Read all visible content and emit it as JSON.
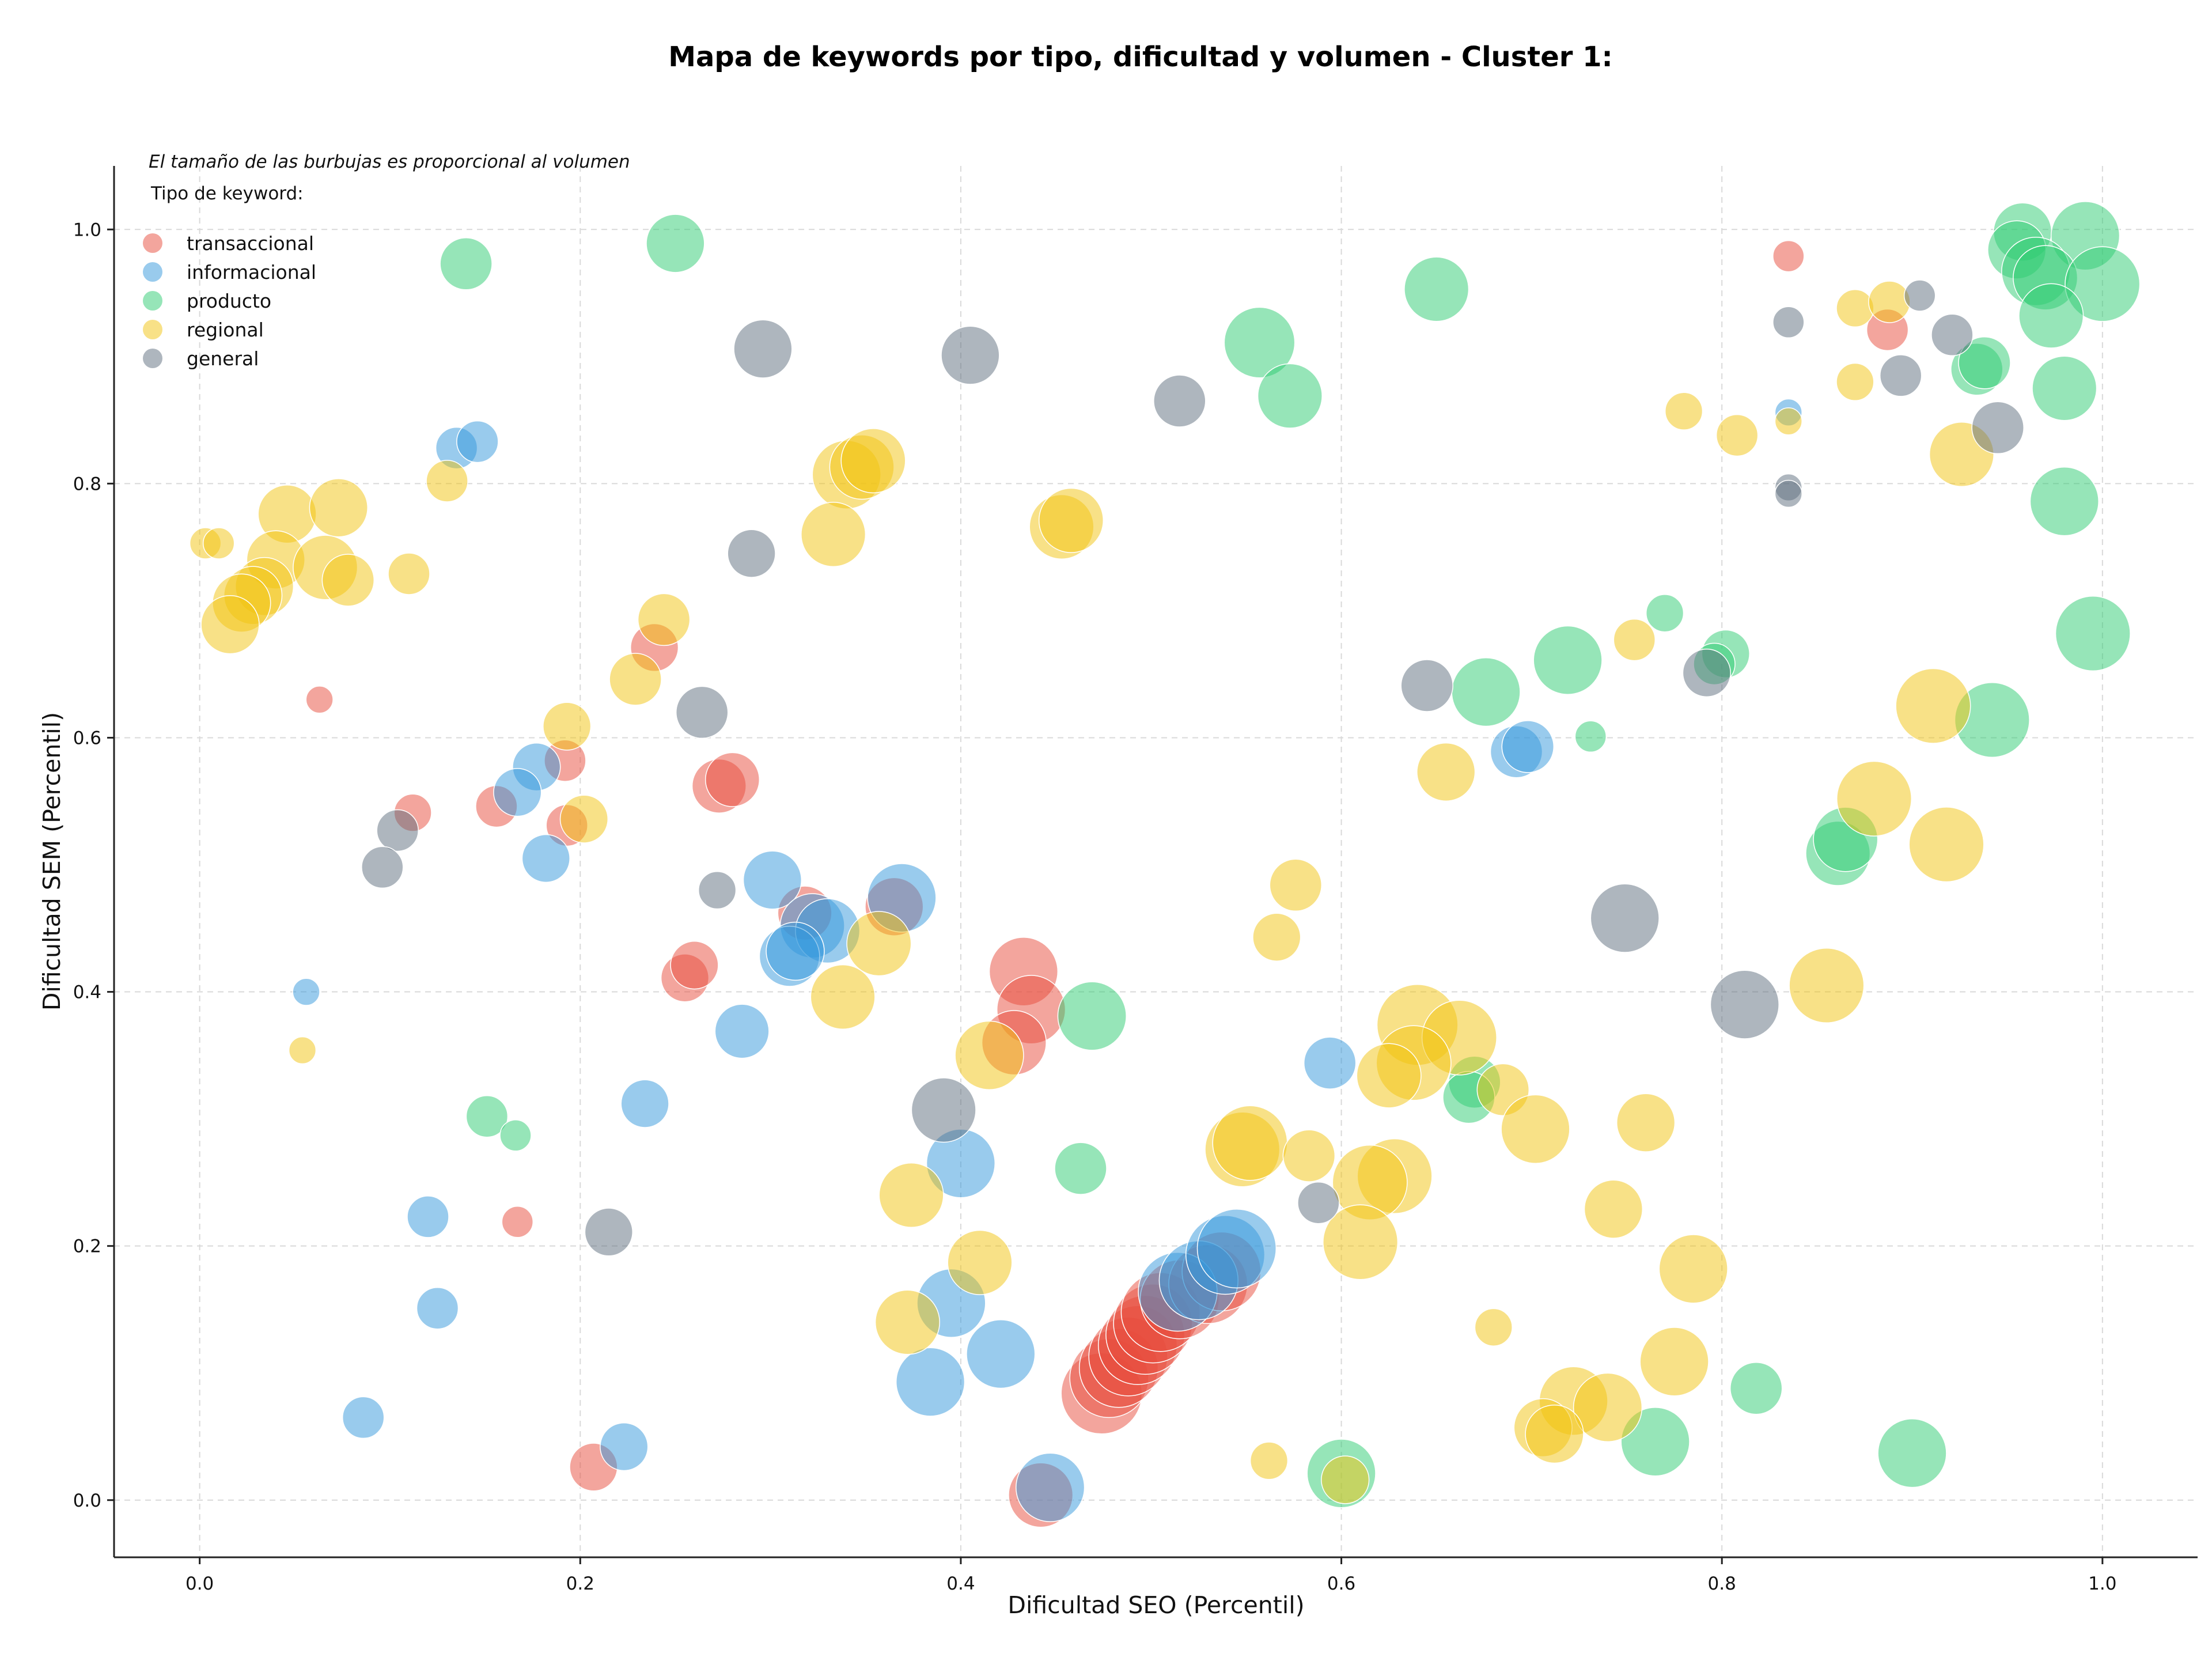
{
  "chart_data": {
    "type": "scatter",
    "title": "Mapa de keywords por tipo, dificultad y volumen - Cluster 1:",
    "xlabel": "Dificultad SEO (Percentil)",
    "ylabel": "Dificultad SEM (Percentil)",
    "xlim": [
      -0.045,
      1.05
    ],
    "ylim": [
      -0.045,
      1.05
    ],
    "xticks": [
      0.0,
      0.2,
      0.4,
      0.6,
      0.8,
      1.0
    ],
    "yticks": [
      0.0,
      0.2,
      0.4,
      0.6,
      0.8,
      1.0
    ],
    "xtick_labels": [
      "0.0",
      "0.2",
      "0.4",
      "0.6",
      "0.8",
      "1.0"
    ],
    "ytick_labels": [
      "0.0",
      "0.2",
      "0.4",
      "0.6",
      "0.8",
      "1.0"
    ],
    "grid": true,
    "legend_placement": "top-left",
    "note": "El tamaño de las burbujas es proporcional al volumen",
    "legend_title": "Tipo de keyword:",
    "series": [
      {
        "name": "transaccional",
        "color": "#e74c3c",
        "points": [
          {
            "x": 0.835,
            "y": 0.979,
            "size": 1.5
          },
          {
            "x": 0.887,
            "y": 0.921,
            "size": 2.0
          },
          {
            "x": 0.063,
            "y": 0.63,
            "size": 1.3
          },
          {
            "x": 0.239,
            "y": 0.671,
            "size": 2.3
          },
          {
            "x": 0.112,
            "y": 0.541,
            "size": 1.8
          },
          {
            "x": 0.156,
            "y": 0.546,
            "size": 2.0
          },
          {
            "x": 0.192,
            "y": 0.582,
            "size": 2.0
          },
          {
            "x": 0.193,
            "y": 0.531,
            "size": 2.0
          },
          {
            "x": 0.273,
            "y": 0.562,
            "size": 2.6
          },
          {
            "x": 0.28,
            "y": 0.567,
            "size": 2.6
          },
          {
            "x": 0.318,
            "y": 0.462,
            "size": 2.6
          },
          {
            "x": 0.365,
            "y": 0.467,
            "size": 2.8
          },
          {
            "x": 0.255,
            "y": 0.411,
            "size": 2.3
          },
          {
            "x": 0.26,
            "y": 0.421,
            "size": 2.3
          },
          {
            "x": 0.433,
            "y": 0.416,
            "size": 3.3
          },
          {
            "x": 0.437,
            "y": 0.386,
            "size": 3.3
          },
          {
            "x": 0.428,
            "y": 0.36,
            "size": 3.1
          },
          {
            "x": 0.167,
            "y": 0.219,
            "size": 1.5
          },
          {
            "x": 0.207,
            "y": 0.026,
            "size": 2.3
          },
          {
            "x": 0.442,
            "y": 0.004,
            "size": 3.1
          },
          {
            "x": 0.474,
            "y": 0.084,
            "size": 3.9
          },
          {
            "x": 0.478,
            "y": 0.096,
            "size": 3.8
          },
          {
            "x": 0.483,
            "y": 0.104,
            "size": 3.8
          },
          {
            "x": 0.488,
            "y": 0.113,
            "size": 3.8
          },
          {
            "x": 0.493,
            "y": 0.122,
            "size": 3.8
          },
          {
            "x": 0.497,
            "y": 0.13,
            "size": 3.8
          },
          {
            "x": 0.501,
            "y": 0.139,
            "size": 3.8
          },
          {
            "x": 0.505,
            "y": 0.148,
            "size": 3.8
          },
          {
            "x": 0.515,
            "y": 0.158,
            "size": 3.8
          },
          {
            "x": 0.53,
            "y": 0.17,
            "size": 3.8
          },
          {
            "x": 0.537,
            "y": 0.18,
            "size": 3.8
          }
        ]
      },
      {
        "name": "informacional",
        "color": "#3498db",
        "points": [
          {
            "x": 0.835,
            "y": 0.856,
            "size": 1.3
          },
          {
            "x": 0.135,
            "y": 0.828,
            "size": 2.0
          },
          {
            "x": 0.146,
            "y": 0.833,
            "size": 2.0
          },
          {
            "x": 0.177,
            "y": 0.577,
            "size": 2.3
          },
          {
            "x": 0.167,
            "y": 0.557,
            "size": 2.3
          },
          {
            "x": 0.182,
            "y": 0.505,
            "size": 2.3
          },
          {
            "x": 0.056,
            "y": 0.4,
            "size": 1.3
          },
          {
            "x": 0.301,
            "y": 0.488,
            "size": 2.8
          },
          {
            "x": 0.322,
            "y": 0.452,
            "size": 3.1
          },
          {
            "x": 0.33,
            "y": 0.448,
            "size": 3.1
          },
          {
            "x": 0.31,
            "y": 0.428,
            "size": 2.9
          },
          {
            "x": 0.313,
            "y": 0.432,
            "size": 2.8
          },
          {
            "x": 0.369,
            "y": 0.474,
            "size": 3.3
          },
          {
            "x": 0.285,
            "y": 0.369,
            "size": 2.6
          },
          {
            "x": 0.234,
            "y": 0.312,
            "size": 2.3
          },
          {
            "x": 0.4,
            "y": 0.265,
            "size": 3.3
          },
          {
            "x": 0.12,
            "y": 0.223,
            "size": 2.0
          },
          {
            "x": 0.125,
            "y": 0.151,
            "size": 2.0
          },
          {
            "x": 0.086,
            "y": 0.065,
            "size": 2.0
          },
          {
            "x": 0.223,
            "y": 0.042,
            "size": 2.3
          },
          {
            "x": 0.395,
            "y": 0.155,
            "size": 3.3
          },
          {
            "x": 0.421,
            "y": 0.115,
            "size": 3.3
          },
          {
            "x": 0.384,
            "y": 0.093,
            "size": 3.3
          },
          {
            "x": 0.447,
            "y": 0.01,
            "size": 3.3
          },
          {
            "x": 0.594,
            "y": 0.344,
            "size": 2.5
          },
          {
            "x": 0.692,
            "y": 0.589,
            "size": 2.5
          },
          {
            "x": 0.698,
            "y": 0.593,
            "size": 2.5
          },
          {
            "x": 0.514,
            "y": 0.164,
            "size": 3.8
          },
          {
            "x": 0.525,
            "y": 0.173,
            "size": 3.8
          },
          {
            "x": 0.539,
            "y": 0.193,
            "size": 3.8
          },
          {
            "x": 0.545,
            "y": 0.198,
            "size": 3.8
          }
        ]
      },
      {
        "name": "producto",
        "color": "#2ecc71",
        "points": [
          {
            "x": 0.14,
            "y": 0.973,
            "size": 2.5
          },
          {
            "x": 0.25,
            "y": 0.989,
            "size": 2.8
          },
          {
            "x": 0.65,
            "y": 0.953,
            "size": 3.1
          },
          {
            "x": 0.557,
            "y": 0.911,
            "size": 3.4
          },
          {
            "x": 0.573,
            "y": 0.869,
            "size": 3.1
          },
          {
            "x": 0.958,
            "y": 0.998,
            "size": 2.8
          },
          {
            "x": 0.955,
            "y": 0.984,
            "size": 2.8
          },
          {
            "x": 0.991,
            "y": 0.995,
            "size": 3.3
          },
          {
            "x": 0.965,
            "y": 0.967,
            "size": 3.3
          },
          {
            "x": 0.97,
            "y": 0.962,
            "size": 3.1
          },
          {
            "x": 1.0,
            "y": 0.957,
            "size": 3.6
          },
          {
            "x": 0.973,
            "y": 0.932,
            "size": 3.1
          },
          {
            "x": 0.934,
            "y": 0.89,
            "size": 2.5
          },
          {
            "x": 0.938,
            "y": 0.895,
            "size": 2.5
          },
          {
            "x": 0.98,
            "y": 0.875,
            "size": 3.1
          },
          {
            "x": 0.98,
            "y": 0.786,
            "size": 3.3
          },
          {
            "x": 0.995,
            "y": 0.682,
            "size": 3.6
          },
          {
            "x": 0.942,
            "y": 0.614,
            "size": 3.6
          },
          {
            "x": 0.77,
            "y": 0.698,
            "size": 1.8
          },
          {
            "x": 0.719,
            "y": 0.661,
            "size": 3.3
          },
          {
            "x": 0.676,
            "y": 0.636,
            "size": 3.3
          },
          {
            "x": 0.802,
            "y": 0.666,
            "size": 2.3
          },
          {
            "x": 0.796,
            "y": 0.658,
            "size": 2.0
          },
          {
            "x": 0.731,
            "y": 0.601,
            "size": 1.5
          },
          {
            "x": 0.861,
            "y": 0.509,
            "size": 3.1
          },
          {
            "x": 0.865,
            "y": 0.52,
            "size": 3.1
          },
          {
            "x": 0.469,
            "y": 0.381,
            "size": 3.3
          },
          {
            "x": 0.67,
            "y": 0.329,
            "size": 2.5
          },
          {
            "x": 0.667,
            "y": 0.317,
            "size": 2.5
          },
          {
            "x": 0.151,
            "y": 0.302,
            "size": 2.0
          },
          {
            "x": 0.166,
            "y": 0.287,
            "size": 1.5
          },
          {
            "x": 0.463,
            "y": 0.261,
            "size": 2.5
          },
          {
            "x": 0.818,
            "y": 0.088,
            "size": 2.5
          },
          {
            "x": 0.765,
            "y": 0.046,
            "size": 3.3
          },
          {
            "x": 0.9,
            "y": 0.037,
            "size": 3.3
          },
          {
            "x": 0.6,
            "y": 0.021,
            "size": 3.3
          }
        ]
      },
      {
        "name": "regional",
        "color": "#f1c40f",
        "points": [
          {
            "x": 0.003,
            "y": 0.753,
            "size": 1.5
          },
          {
            "x": 0.01,
            "y": 0.753,
            "size": 1.5
          },
          {
            "x": 0.046,
            "y": 0.776,
            "size": 2.8
          },
          {
            "x": 0.073,
            "y": 0.781,
            "size": 2.8
          },
          {
            "x": 0.04,
            "y": 0.74,
            "size": 2.8
          },
          {
            "x": 0.066,
            "y": 0.734,
            "size": 3.1
          },
          {
            "x": 0.078,
            "y": 0.724,
            "size": 2.5
          },
          {
            "x": 0.11,
            "y": 0.729,
            "size": 2.0
          },
          {
            "x": 0.034,
            "y": 0.719,
            "size": 2.8
          },
          {
            "x": 0.028,
            "y": 0.712,
            "size": 2.8
          },
          {
            "x": 0.022,
            "y": 0.706,
            "size": 2.8
          },
          {
            "x": 0.016,
            "y": 0.689,
            "size": 2.8
          },
          {
            "x": 0.13,
            "y": 0.802,
            "size": 2.0
          },
          {
            "x": 0.34,
            "y": 0.807,
            "size": 3.3
          },
          {
            "x": 0.348,
            "y": 0.813,
            "size": 3.1
          },
          {
            "x": 0.354,
            "y": 0.818,
            "size": 3.1
          },
          {
            "x": 0.333,
            "y": 0.76,
            "size": 3.1
          },
          {
            "x": 0.453,
            "y": 0.766,
            "size": 3.1
          },
          {
            "x": 0.458,
            "y": 0.771,
            "size": 3.1
          },
          {
            "x": 0.244,
            "y": 0.693,
            "size": 2.5
          },
          {
            "x": 0.229,
            "y": 0.646,
            "size": 2.5
          },
          {
            "x": 0.193,
            "y": 0.609,
            "size": 2.3
          },
          {
            "x": 0.202,
            "y": 0.536,
            "size": 2.3
          },
          {
            "x": 0.357,
            "y": 0.438,
            "size": 3.1
          },
          {
            "x": 0.338,
            "y": 0.396,
            "size": 3.1
          },
          {
            "x": 0.054,
            "y": 0.354,
            "size": 1.3
          },
          {
            "x": 0.415,
            "y": 0.35,
            "size": 3.3
          },
          {
            "x": 0.576,
            "y": 0.484,
            "size": 2.5
          },
          {
            "x": 0.566,
            "y": 0.443,
            "size": 2.3
          },
          {
            "x": 0.655,
            "y": 0.573,
            "size": 2.8
          },
          {
            "x": 0.754,
            "y": 0.677,
            "size": 2.0
          },
          {
            "x": 0.78,
            "y": 0.857,
            "size": 1.8
          },
          {
            "x": 0.808,
            "y": 0.838,
            "size": 2.0
          },
          {
            "x": 0.835,
            "y": 0.849,
            "size": 1.3
          },
          {
            "x": 0.87,
            "y": 0.938,
            "size": 1.8
          },
          {
            "x": 0.888,
            "y": 0.943,
            "size": 2.0
          },
          {
            "x": 0.87,
            "y": 0.88,
            "size": 1.8
          },
          {
            "x": 0.926,
            "y": 0.823,
            "size": 3.1
          },
          {
            "x": 0.911,
            "y": 0.625,
            "size": 3.6
          },
          {
            "x": 0.88,
            "y": 0.552,
            "size": 3.6
          },
          {
            "x": 0.918,
            "y": 0.516,
            "size": 3.6
          },
          {
            "x": 0.855,
            "y": 0.405,
            "size": 3.6
          },
          {
            "x": 0.64,
            "y": 0.374,
            "size": 3.9
          },
          {
            "x": 0.662,
            "y": 0.364,
            "size": 3.6
          },
          {
            "x": 0.638,
            "y": 0.344,
            "size": 3.6
          },
          {
            "x": 0.625,
            "y": 0.334,
            "size": 3.1
          },
          {
            "x": 0.685,
            "y": 0.323,
            "size": 2.5
          },
          {
            "x": 0.702,
            "y": 0.292,
            "size": 3.3
          },
          {
            "x": 0.76,
            "y": 0.297,
            "size": 2.8
          },
          {
            "x": 0.548,
            "y": 0.276,
            "size": 3.6
          },
          {
            "x": 0.552,
            "y": 0.281,
            "size": 3.6
          },
          {
            "x": 0.583,
            "y": 0.271,
            "size": 2.5
          },
          {
            "x": 0.628,
            "y": 0.255,
            "size": 3.6
          },
          {
            "x": 0.615,
            "y": 0.25,
            "size": 3.6
          },
          {
            "x": 0.61,
            "y": 0.203,
            "size": 3.6
          },
          {
            "x": 0.374,
            "y": 0.24,
            "size": 3.1
          },
          {
            "x": 0.41,
            "y": 0.187,
            "size": 3.1
          },
          {
            "x": 0.372,
            "y": 0.14,
            "size": 3.1
          },
          {
            "x": 0.743,
            "y": 0.229,
            "size": 2.8
          },
          {
            "x": 0.785,
            "y": 0.182,
            "size": 3.3
          },
          {
            "x": 0.68,
            "y": 0.136,
            "size": 1.8
          },
          {
            "x": 0.775,
            "y": 0.109,
            "size": 3.3
          },
          {
            "x": 0.722,
            "y": 0.078,
            "size": 3.3
          },
          {
            "x": 0.74,
            "y": 0.073,
            "size": 3.3
          },
          {
            "x": 0.706,
            "y": 0.057,
            "size": 2.8
          },
          {
            "x": 0.712,
            "y": 0.052,
            "size": 2.8
          },
          {
            "x": 0.562,
            "y": 0.031,
            "size": 1.8
          },
          {
            "x": 0.602,
            "y": 0.016,
            "size": 2.3
          }
        ]
      },
      {
        "name": "general",
        "color": "#5d6d7e",
        "points": [
          {
            "x": 0.296,
            "y": 0.906,
            "size": 2.8
          },
          {
            "x": 0.405,
            "y": 0.901,
            "size": 2.8
          },
          {
            "x": 0.515,
            "y": 0.865,
            "size": 2.5
          },
          {
            "x": 0.29,
            "y": 0.745,
            "size": 2.3
          },
          {
            "x": 0.264,
            "y": 0.62,
            "size": 2.5
          },
          {
            "x": 0.104,
            "y": 0.527,
            "size": 2.0
          },
          {
            "x": 0.096,
            "y": 0.498,
            "size": 2.0
          },
          {
            "x": 0.272,
            "y": 0.48,
            "size": 1.8
          },
          {
            "x": 0.391,
            "y": 0.307,
            "size": 3.1
          },
          {
            "x": 0.215,
            "y": 0.211,
            "size": 2.3
          },
          {
            "x": 0.588,
            "y": 0.234,
            "size": 2.0
          },
          {
            "x": 0.645,
            "y": 0.641,
            "size": 2.5
          },
          {
            "x": 0.749,
            "y": 0.458,
            "size": 3.3
          },
          {
            "x": 0.812,
            "y": 0.39,
            "size": 3.3
          },
          {
            "x": 0.792,
            "y": 0.651,
            "size": 2.3
          },
          {
            "x": 0.835,
            "y": 0.927,
            "size": 1.5
          },
          {
            "x": 0.904,
            "y": 0.948,
            "size": 1.5
          },
          {
            "x": 0.921,
            "y": 0.917,
            "size": 2.0
          },
          {
            "x": 0.894,
            "y": 0.885,
            "size": 2.0
          },
          {
            "x": 0.945,
            "y": 0.844,
            "size": 2.5
          },
          {
            "x": 0.835,
            "y": 0.797,
            "size": 1.3
          },
          {
            "x": 0.835,
            "y": 0.792,
            "size": 1.3
          }
        ]
      }
    ]
  }
}
